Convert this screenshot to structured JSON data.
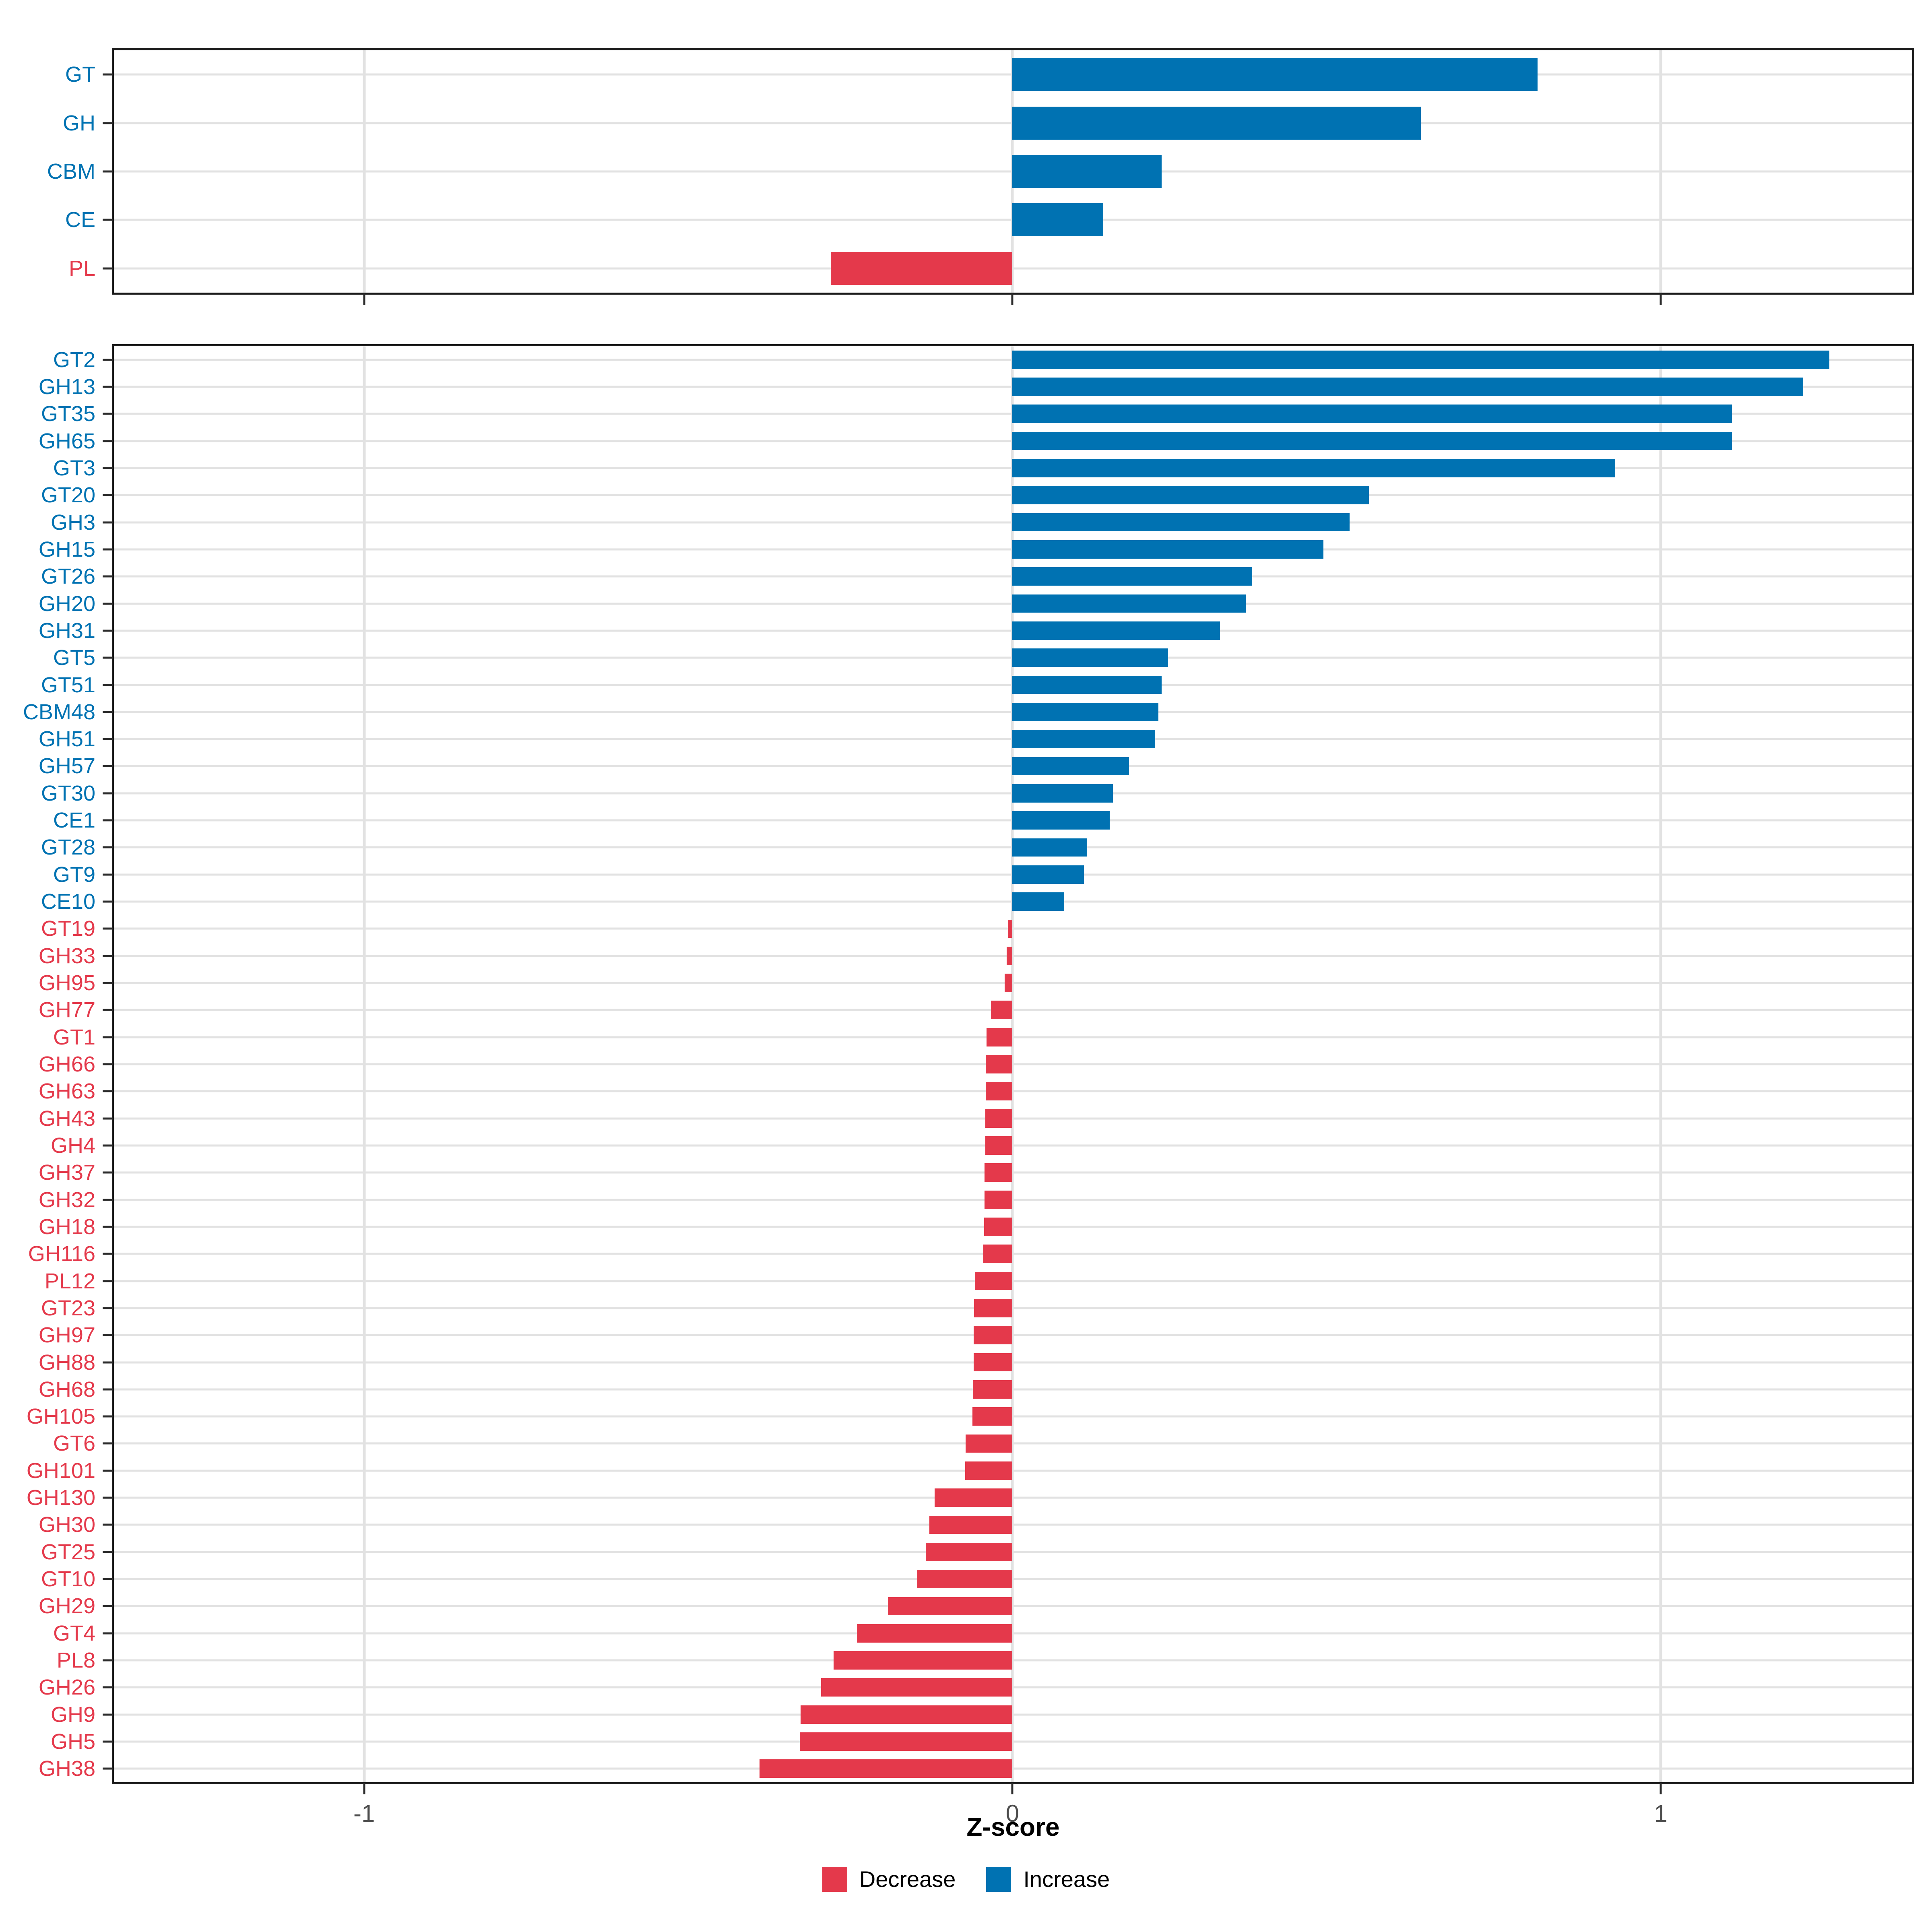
{
  "xlabel": "Z-score",
  "legend": [
    {
      "label": "Decrease",
      "color": "#E4394B"
    },
    {
      "label": "Increase",
      "color": "#0072B2"
    }
  ],
  "chart_data": [
    {
      "type": "bar",
      "orientation": "horizontal",
      "panel": "cazyme-class-summary",
      "categories": [
        "GT",
        "GH",
        "CBM",
        "CE",
        "PL"
      ],
      "values": [
        0.81,
        0.63,
        0.23,
        0.14,
        -0.28
      ],
      "xlim": [
        -1.386,
        1.388
      ],
      "xticks": [
        -1,
        0,
        1
      ],
      "xtick_labels": [
        "-1",
        "0",
        "1"
      ],
      "show_x_labels": false,
      "grid": true,
      "colors": {
        "increase": "#0072B2",
        "decrease": "#E4394B"
      }
    },
    {
      "type": "bar",
      "orientation": "horizontal",
      "panel": "cazyme-family-detail",
      "categories": [
        "GT2",
        "GH13",
        "GT35",
        "GH65",
        "GT3",
        "GT20",
        "GH3",
        "GH15",
        "GT26",
        "GH20",
        "GH31",
        "GT5",
        "GT51",
        "CBM48",
        "GH51",
        "GH57",
        "GT30",
        "CE1",
        "GT28",
        "GT9",
        "CE10",
        "GT19",
        "GH33",
        "GH95",
        "GH77",
        "GT1",
        "GH66",
        "GH63",
        "GH43",
        "GH4",
        "GH37",
        "GH32",
        "GH18",
        "GH116",
        "PL12",
        "GT23",
        "GH97",
        "GH88",
        "GH68",
        "GH105",
        "GT6",
        "GH101",
        "GH130",
        "GH30",
        "GT25",
        "GT10",
        "GH29",
        "GT4",
        "PL8",
        "GH26",
        "GH9",
        "GH5",
        "GH38"
      ],
      "values": [
        1.26,
        1.22,
        1.11,
        1.11,
        0.93,
        0.55,
        0.52,
        0.48,
        0.37,
        0.36,
        0.32,
        0.24,
        0.23,
        0.225,
        0.22,
        0.18,
        0.155,
        0.15,
        0.115,
        0.11,
        0.08,
        -0.007,
        -0.009,
        -0.012,
        -0.033,
        -0.04,
        -0.041,
        -0.041,
        -0.042,
        -0.042,
        -0.043,
        -0.043,
        -0.044,
        -0.045,
        -0.058,
        -0.059,
        -0.06,
        -0.06,
        -0.061,
        -0.062,
        -0.072,
        -0.073,
        -0.12,
        -0.128,
        -0.134,
        -0.147,
        -0.192,
        -0.24,
        -0.276,
        -0.295,
        -0.327,
        -0.328,
        -0.39
      ],
      "xlim": [
        -1.386,
        1.388
      ],
      "xticks": [
        -1,
        0,
        1
      ],
      "xtick_labels": [
        "-1",
        "0",
        "1"
      ],
      "show_x_labels": true,
      "grid": true,
      "colors": {
        "increase": "#0072B2",
        "decrease": "#E4394B"
      }
    }
  ]
}
